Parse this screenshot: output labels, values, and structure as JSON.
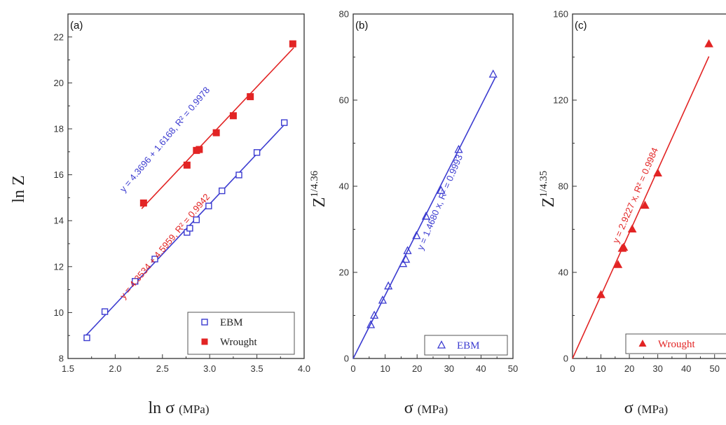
{
  "colors": {
    "blue": "#3b3bd0",
    "red": "#e22424",
    "axis": "#333333"
  },
  "chart_data": [
    {
      "type": "scatter",
      "panel_label": "(a)",
      "xlabel": "ln σ",
      "xunit": "(MPa)",
      "ylabel": "ln Z",
      "yunit": "",
      "xlim": [
        1.5,
        4.0
      ],
      "ylim": [
        8,
        23
      ],
      "xticks": [
        1.5,
        2.0,
        2.5,
        3.0,
        3.5,
        4.0
      ],
      "xtick_labels": [
        "1.5",
        "2.0",
        "2.5",
        "3.0",
        "3.5",
        "4.0"
      ],
      "yticks": [
        8,
        10,
        12,
        14,
        16,
        18,
        20,
        22
      ],
      "ytick_labels": [
        "8",
        "10",
        "12",
        "14",
        "16",
        "18",
        "20",
        "22"
      ],
      "legend_position": "bottom-right",
      "series": [
        {
          "name": "EBM",
          "marker": "open-square",
          "color": "#3b3bd0",
          "x": [
            1.7,
            1.89,
            2.21,
            2.42,
            2.76,
            2.79,
            2.86,
            2.99,
            3.13,
            3.31,
            3.5,
            3.79
          ],
          "y": [
            8.9,
            10.04,
            11.36,
            12.33,
            13.49,
            13.67,
            14.04,
            14.64,
            15.3,
            15.99,
            16.97,
            18.27
          ],
          "fit": {
            "slope": 4.3696,
            "intercept": 1.6168,
            "x_range": [
              1.68,
              3.82
            ],
            "label": "y = 4.3696 + 1.6168, R² = 0.9978"
          }
        },
        {
          "name": "Wrought",
          "marker": "filled-square",
          "color": "#e22424",
          "x": [
            2.3,
            2.76,
            2.86,
            2.89,
            3.07,
            3.25,
            3.43,
            3.88
          ],
          "y": [
            14.77,
            16.42,
            17.06,
            17.1,
            17.83,
            18.57,
            19.4,
            21.7
          ],
          "fit": {
            "slope": 4.3534,
            "intercept": 4.5959,
            "x_range": [
              2.28,
              3.89
            ],
            "label": "y = 4.3534 + 4.5959, R² = 0.9942"
          }
        }
      ]
    },
    {
      "type": "scatter",
      "panel_label": "(b)",
      "xlabel": "σ",
      "xunit": "(MPa)",
      "ylabel": "Z",
      "ylabel_exp": "1/4.36",
      "xlim": [
        0,
        50
      ],
      "ylim": [
        0,
        80
      ],
      "xticks": [
        0,
        10,
        20,
        30,
        40,
        50
      ],
      "xtick_labels": [
        "0",
        "10",
        "20",
        "30",
        "40",
        "50"
      ],
      "yticks": [
        0,
        20,
        40,
        60,
        80
      ],
      "ytick_labels": [
        "0",
        "20",
        "40",
        "60",
        "80"
      ],
      "legend_position": "bottom-right",
      "series": [
        {
          "name": "EBM",
          "marker": "open-triangle",
          "color": "#3b3bd0",
          "x": [
            5.5,
            6.6,
            9.2,
            11.0,
            15.6,
            16.5,
            17.0,
            19.8,
            22.8,
            27.5,
            33.0,
            43.8
          ],
          "y": [
            7.8,
            10.0,
            13.5,
            16.8,
            22.0,
            23.0,
            25.0,
            28.5,
            33.0,
            39.0,
            48.5,
            66.0
          ],
          "fit": {
            "slope": 1.468,
            "intercept": 0,
            "x_range": [
              0,
              44.5
            ],
            "label": "y = 1.4680 x, R² = 0.9993"
          }
        }
      ]
    },
    {
      "type": "scatter",
      "panel_label": "(c)",
      "xlabel": "σ",
      "xunit": "(MPa)",
      "ylabel": "Z",
      "ylabel_exp": "1/4.35",
      "xlim": [
        0,
        55
      ],
      "ylim": [
        0,
        160
      ],
      "xticks": [
        0,
        10,
        20,
        30,
        40,
        50
      ],
      "xtick_labels": [
        "0",
        "10",
        "20",
        "30",
        "40",
        "50"
      ],
      "yticks": [
        0,
        40,
        80,
        120,
        160
      ],
      "ytick_labels": [
        "0",
        "40",
        "80",
        "120",
        "160"
      ],
      "legend_position": "bottom-right",
      "series": [
        {
          "name": "Wrought",
          "marker": "filled-triangle",
          "color": "#e22424",
          "x": [
            10.0,
            16.0,
            17.5,
            18.0,
            21.0,
            25.5,
            30.0,
            48.0
          ],
          "y": [
            29.5,
            43.5,
            51.0,
            51.5,
            60.0,
            71.0,
            86.0,
            146.0
          ],
          "fit": {
            "slope": 2.9227,
            "intercept": 0,
            "x_range": [
              0,
              48
            ],
            "label": "y = 2.9227 x, R² = 0.9984"
          }
        }
      ]
    }
  ]
}
